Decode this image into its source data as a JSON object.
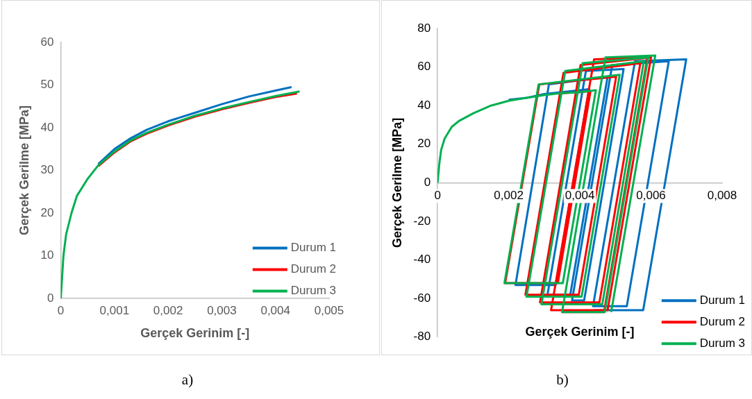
{
  "chart_data": [
    {
      "type": "line",
      "xlabel": "Gerçek Gerinim [-]",
      "ylabel": "Gerçek Gerilme [MPa]",
      "xlim": [
        0,
        0.005
      ],
      "xticks": [
        0,
        {
          "value": 0.001,
          "label": "0,001"
        },
        {
          "value": 0.002,
          "label": "0,002"
        },
        {
          "value": 0.003,
          "label": "0,003"
        },
        {
          "value": 0.004,
          "label": "0,004"
        },
        {
          "value": 0.005,
          "label": "0,005"
        }
      ],
      "ylim": [
        0,
        60
      ],
      "yticks": [
        0,
        10,
        20,
        30,
        40,
        50,
        60
      ],
      "grid": false,
      "legend": "bottom right",
      "marker": "none",
      "line_style": "solid",
      "annotations": [
        "a)"
      ],
      "series": [
        {
          "name": "Durum 1",
          "color": "#0070c0",
          "x": [
            0.0007,
            0.001,
            0.0013,
            0.0016,
            0.002,
            0.0025,
            0.003,
            0.0035,
            0.004,
            0.0043
          ],
          "values": [
            31.5,
            35,
            37.5,
            39.5,
            41.5,
            43.5,
            45.5,
            47.3,
            48.7,
            49.5
          ]
        },
        {
          "name": "Durum 2",
          "color": "#ff0000",
          "x": [
            0.0007,
            0.001,
            0.0013,
            0.0016,
            0.002,
            0.0025,
            0.003,
            0.0035,
            0.004,
            0.0044
          ],
          "values": [
            31,
            34.2,
            36.8,
            38.6,
            40.5,
            42.6,
            44.3,
            45.8,
            47.2,
            48
          ]
        },
        {
          "name": "Durum 3",
          "color": "#00b050",
          "x": [
            0,
            5e-05,
            0.0001,
            0.0002,
            0.0003,
            0.0005,
            0.0007,
            0.001,
            0.0013,
            0.0016,
            0.002,
            0.0025,
            0.003,
            0.0035,
            0.004,
            0.00445
          ],
          "values": [
            0,
            10,
            15,
            20,
            24,
            28,
            31.2,
            34.4,
            37,
            38.8,
            40.7,
            42.8,
            44.5,
            46,
            47.4,
            48.5
          ]
        }
      ]
    },
    {
      "type": "line",
      "xlabel": "Gerçek Gerinim [-]",
      "ylabel": "Gerçek Gerilme [MPa]",
      "xlim": [
        0,
        0.008
      ],
      "xticks": [
        0,
        {
          "value": 0.002,
          "label": "0,002"
        },
        {
          "value": 0.004,
          "label": "0,004"
        },
        {
          "value": 0.006,
          "label": "0,006"
        },
        {
          "value": 0.008,
          "label": "0,008"
        }
      ],
      "ylim": [
        -80,
        80
      ],
      "yticks": [
        -80,
        -60,
        -40,
        -20,
        0,
        20,
        40,
        60,
        80
      ],
      "grid": false,
      "legend": "bottom right",
      "marker": "none",
      "line_style": "solid",
      "annotations": [
        "b)"
      ],
      "series": [
        {
          "name": "Durum 1",
          "color": "#0070c0",
          "x": [
            0.002,
            0.0025,
            0.003,
            0.0035,
            0.004,
            0.00426,
            0.00332,
            0.00219,
            0.00313,
            0.00478,
            0.00373,
            0.00309,
            0.00417,
            0.00523,
            0.00412,
            0.00378,
            0.00491,
            0.0065,
            0.00532,
            0.00437,
            0.00555,
            0.00699,
            0.00578,
            0.0044
          ],
          "values": [
            43,
            44,
            46,
            47,
            48,
            48.5,
            -53,
            -53,
            51,
            55,
            -58,
            -58,
            58,
            59,
            -61,
            -61,
            61,
            63,
            -64,
            -64,
            63,
            64,
            -66,
            -66
          ]
        },
        {
          "name": "Durum 2",
          "color": "#ff0000",
          "x": [
            0.0035,
            0.004,
            0.0043,
            0.00338,
            0.0019,
            0.00286,
            0.00502,
            0.00397,
            0.00247,
            0.00354,
            0.0057,
            0.00455,
            0.00288,
            0.00402,
            0.006,
            0.00478,
            0.00319,
            0.0044,
            0.0059,
            0.00468,
            0.0035
          ],
          "values": [
            46.5,
            47,
            47.5,
            -52,
            -52,
            51,
            55,
            -58,
            -58,
            57,
            62,
            -62,
            -62,
            61,
            65,
            -66,
            -66,
            64,
            65,
            -67,
            -67
          ]
        },
        {
          "name": "Durum 3",
          "color": "#00b050",
          "x": [
            0,
            5e-05,
            0.0001,
            0.0002,
            0.0004,
            0.0006,
            0.001,
            0.0015,
            0.002,
            0.0025,
            0.003,
            0.0035,
            0.004,
            0.00445,
            0.00352,
            0.00188,
            0.00284,
            0.00512,
            0.00405,
            0.0025,
            0.00359,
            0.0058,
            0.00463,
            0.00292,
            0.00408,
            0.00592,
            0.0047,
            0.0035,
            0.00472,
            0.00612,
            0.00488
          ],
          "values": [
            0,
            10,
            17,
            23,
            29,
            32,
            36,
            40,
            42.5,
            44,
            45.5,
            46.5,
            47,
            48,
            -52,
            -52,
            51,
            56,
            -59,
            -59,
            58,
            63,
            -63,
            -63,
            62,
            65,
            -67,
            -67,
            65,
            66,
            -67
          ]
        }
      ]
    }
  ]
}
